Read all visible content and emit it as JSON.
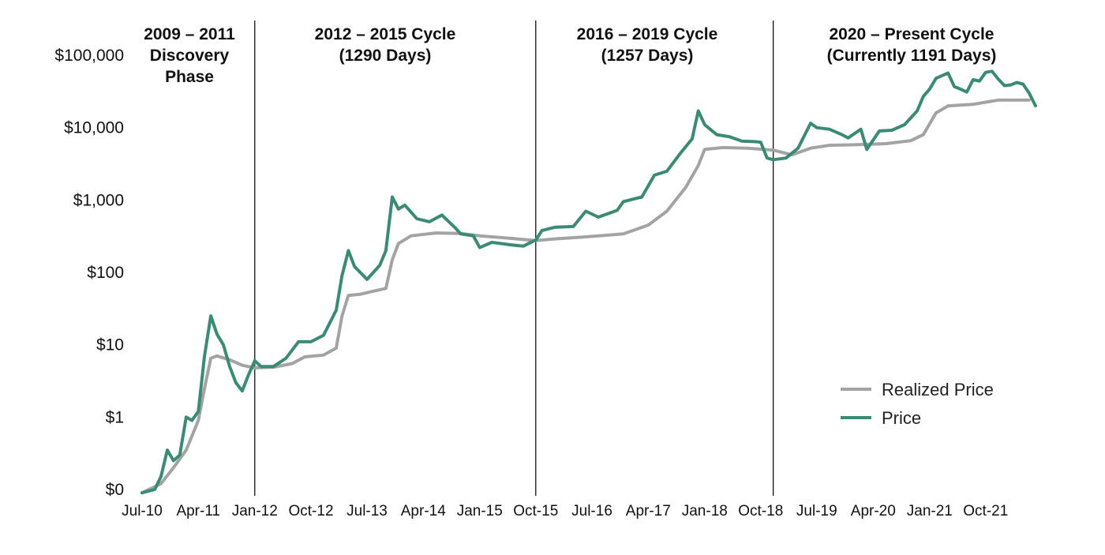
{
  "chart_data": {
    "type": "line",
    "title": "",
    "xlabel": "",
    "ylabel": "",
    "y_scale": "log",
    "grid": false,
    "legend_position": "bottom-right",
    "y_ticks": [
      {
        "label": "$100,000",
        "value": 100000
      },
      {
        "label": "$10,000",
        "value": 10000
      },
      {
        "label": "$1,000",
        "value": 1000
      },
      {
        "label": "$100",
        "value": 100
      },
      {
        "label": "$10",
        "value": 10
      },
      {
        "label": "$1",
        "value": 1
      },
      {
        "label": "$0",
        "value": 0.1
      }
    ],
    "x_ticks": [
      {
        "label": "Jul-10",
        "date": "2010-07"
      },
      {
        "label": "Apr-11",
        "date": "2011-04"
      },
      {
        "label": "Jan-12",
        "date": "2012-01"
      },
      {
        "label": "Oct-12",
        "date": "2012-10"
      },
      {
        "label": "Jul-13",
        "date": "2013-07"
      },
      {
        "label": "Apr-14",
        "date": "2014-04"
      },
      {
        "label": "Jan-15",
        "date": "2015-01"
      },
      {
        "label": "Oct-15",
        "date": "2015-10"
      },
      {
        "label": "Jul-16",
        "date": "2016-07"
      },
      {
        "label": "Apr-17",
        "date": "2017-04"
      },
      {
        "label": "Jan-18",
        "date": "2018-01"
      },
      {
        "label": "Oct-18",
        "date": "2018-10"
      },
      {
        "label": "Jul-19",
        "date": "2019-07"
      },
      {
        "label": "Apr-20",
        "date": "2020-04"
      },
      {
        "label": "Jan-21",
        "date": "2021-01"
      },
      {
        "label": "Oct-21",
        "date": "2021-10"
      }
    ],
    "phase_dividers": [
      "2012-01",
      "2015-10",
      "2018-12"
    ],
    "phases": [
      {
        "lines": [
          "2009 – 2011",
          "Discovery",
          "Phase"
        ]
      },
      {
        "lines": [
          "2012 – 2015 Cycle",
          "(1290 Days)"
        ]
      },
      {
        "lines": [
          "2016 – 2019 Cycle",
          "(1257 Days)"
        ]
      },
      {
        "lines": [
          "2020 – Present Cycle",
          "(Currently 1191 Days)"
        ]
      }
    ],
    "series": [
      {
        "name": "Realized Price",
        "color": "#a3a3a3",
        "points": [
          [
            "2010-07",
            0.09
          ],
          [
            "2010-10",
            0.12
          ],
          [
            "2010-12",
            0.2
          ],
          [
            "2011-02",
            0.35
          ],
          [
            "2011-04",
            0.9
          ],
          [
            "2011-05",
            2.5
          ],
          [
            "2011-06",
            6.5
          ],
          [
            "2011-07",
            7.0
          ],
          [
            "2011-09",
            6.2
          ],
          [
            "2011-11",
            5.2
          ],
          [
            "2012-01",
            4.8
          ],
          [
            "2012-04",
            4.9
          ],
          [
            "2012-07",
            5.5
          ],
          [
            "2012-09",
            6.8
          ],
          [
            "2012-12",
            7.2
          ],
          [
            "2013-02",
            9.0
          ],
          [
            "2013-03",
            25
          ],
          [
            "2013-04",
            48
          ],
          [
            "2013-06",
            50
          ],
          [
            "2013-08",
            55
          ],
          [
            "2013-10",
            60
          ],
          [
            "2013-11",
            150
          ],
          [
            "2013-12",
            250
          ],
          [
            "2014-02",
            320
          ],
          [
            "2014-06",
            350
          ],
          [
            "2014-10",
            345
          ],
          [
            "2015-01",
            320
          ],
          [
            "2015-06",
            295
          ],
          [
            "2015-10",
            275
          ],
          [
            "2016-01",
            290
          ],
          [
            "2016-06",
            310
          ],
          [
            "2016-12",
            340
          ],
          [
            "2017-04",
            450
          ],
          [
            "2017-07",
            700
          ],
          [
            "2017-10",
            1500
          ],
          [
            "2017-12",
            3000
          ],
          [
            "2018-01",
            5000
          ],
          [
            "2018-04",
            5300
          ],
          [
            "2018-08",
            5200
          ],
          [
            "2018-12",
            4900
          ],
          [
            "2019-03",
            4200
          ],
          [
            "2019-06",
            5200
          ],
          [
            "2019-09",
            5700
          ],
          [
            "2020-01",
            5800
          ],
          [
            "2020-06",
            6000
          ],
          [
            "2020-10",
            6600
          ],
          [
            "2020-12",
            8000
          ],
          [
            "2021-02",
            16000
          ],
          [
            "2021-04",
            20000
          ],
          [
            "2021-08",
            21000
          ],
          [
            "2021-12",
            24000
          ],
          [
            "2022-05",
            24000
          ]
        ]
      },
      {
        "name": "Price",
        "color": "#3a8a76",
        "points": [
          [
            "2010-07",
            0.07
          ],
          [
            "2010-09",
            0.1
          ],
          [
            "2010-10",
            0.15
          ],
          [
            "2010-11",
            0.35
          ],
          [
            "2010-12",
            0.25
          ],
          [
            "2011-01",
            0.3
          ],
          [
            "2011-02",
            1.0
          ],
          [
            "2011-03",
            0.9
          ],
          [
            "2011-04",
            1.2
          ],
          [
            "2011-05",
            7.0
          ],
          [
            "2011-06",
            25
          ],
          [
            "2011-07",
            14
          ],
          [
            "2011-08",
            10
          ],
          [
            "2011-09",
            5.0
          ],
          [
            "2011-10",
            3.0
          ],
          [
            "2011-11",
            2.3
          ],
          [
            "2011-12",
            3.8
          ],
          [
            "2012-01",
            6.0
          ],
          [
            "2012-02",
            5.0
          ],
          [
            "2012-04",
            5.0
          ],
          [
            "2012-06",
            6.5
          ],
          [
            "2012-08",
            11
          ],
          [
            "2012-10",
            11
          ],
          [
            "2012-12",
            13.5
          ],
          [
            "2013-02",
            30
          ],
          [
            "2013-03",
            90
          ],
          [
            "2013-04",
            200
          ],
          [
            "2013-05",
            120
          ],
          [
            "2013-07",
            80
          ],
          [
            "2013-09",
            125
          ],
          [
            "2013-10",
            200
          ],
          [
            "2013-11",
            1100
          ],
          [
            "2013-12",
            750
          ],
          [
            "2014-01",
            850
          ],
          [
            "2014-03",
            550
          ],
          [
            "2014-05",
            500
          ],
          [
            "2014-07",
            620
          ],
          [
            "2014-09",
            420
          ],
          [
            "2014-10",
            340
          ],
          [
            "2014-12",
            320
          ],
          [
            "2015-01",
            220
          ],
          [
            "2015-03",
            260
          ],
          [
            "2015-06",
            240
          ],
          [
            "2015-08",
            230
          ],
          [
            "2015-10",
            280
          ],
          [
            "2015-11",
            380
          ],
          [
            "2016-01",
            420
          ],
          [
            "2016-04",
            430
          ],
          [
            "2016-06",
            700
          ],
          [
            "2016-08",
            580
          ],
          [
            "2016-11",
            720
          ],
          [
            "2016-12",
            950
          ],
          [
            "2017-01",
            1000
          ],
          [
            "2017-03",
            1100
          ],
          [
            "2017-05",
            2200
          ],
          [
            "2017-07",
            2500
          ],
          [
            "2017-09",
            4300
          ],
          [
            "2017-11",
            7000
          ],
          [
            "2017-12",
            17000
          ],
          [
            "2018-01",
            11000
          ],
          [
            "2018-03",
            8000
          ],
          [
            "2018-05",
            7500
          ],
          [
            "2018-07",
            6500
          ],
          [
            "2018-09",
            6400
          ],
          [
            "2018-10",
            6300
          ],
          [
            "2018-11",
            3800
          ],
          [
            "2018-12",
            3600
          ],
          [
            "2019-02",
            3800
          ],
          [
            "2019-04",
            5200
          ],
          [
            "2019-06",
            11500
          ],
          [
            "2019-07",
            10000
          ],
          [
            "2019-09",
            9500
          ],
          [
            "2019-11",
            8000
          ],
          [
            "2019-12",
            7200
          ],
          [
            "2020-02",
            9500
          ],
          [
            "2020-03",
            5000
          ],
          [
            "2020-05",
            9000
          ],
          [
            "2020-07",
            9200
          ],
          [
            "2020-09",
            11000
          ],
          [
            "2020-11",
            17000
          ],
          [
            "2020-12",
            27000
          ],
          [
            "2021-01",
            34000
          ],
          [
            "2021-02",
            48000
          ],
          [
            "2021-04",
            57000
          ],
          [
            "2021-05",
            37000
          ],
          [
            "2021-06",
            34000
          ],
          [
            "2021-07",
            31000
          ],
          [
            "2021-08",
            46000
          ],
          [
            "2021-09",
            44000
          ],
          [
            "2021-10",
            58000
          ],
          [
            "2021-11",
            60000
          ],
          [
            "2021-12",
            47000
          ],
          [
            "2022-01",
            38000
          ],
          [
            "2022-02",
            39000
          ],
          [
            "2022-03",
            42000
          ],
          [
            "2022-04",
            40000
          ],
          [
            "2022-05",
            30000
          ],
          [
            "2022-06",
            20000
          ]
        ]
      }
    ]
  }
}
